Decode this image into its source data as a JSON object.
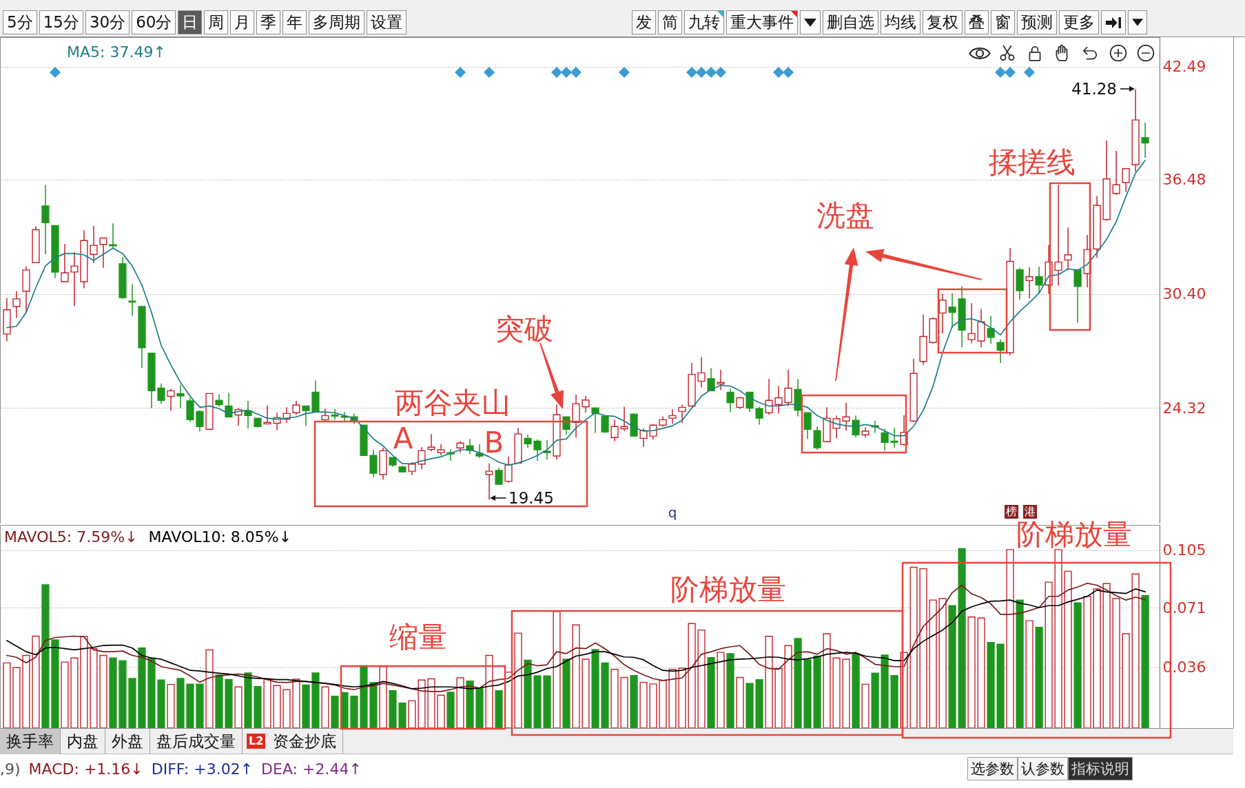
{
  "chart_data": [
    {
      "type": "other",
      "annotations": [
        "5分",
        "15分",
        "30分",
        "60分",
        "日",
        "周",
        "月",
        "季",
        "年",
        "多周期",
        "设置",
        "发",
        "简",
        "九转",
        "重大事件",
        "删自选",
        "均线",
        "复权",
        "叠",
        "窗",
        "预测",
        "更多"
      ]
    },
    {
      "type": "candlestick",
      "categories": [
        null,
        null,
        null,
        null,
        null,
        null,
        null,
        null,
        null,
        null,
        null,
        null,
        null,
        null,
        null,
        null,
        null,
        null,
        null,
        null,
        null,
        null,
        null,
        null,
        null,
        null,
        null,
        null,
        null,
        null,
        null,
        null,
        null,
        null,
        null,
        null,
        null,
        null,
        null,
        null,
        null,
        null,
        null,
        null,
        null,
        null,
        null,
        null,
        null,
        null,
        null,
        null,
        null,
        null,
        null,
        null,
        null,
        null,
        null,
        null,
        null,
        null,
        null,
        null,
        null,
        null,
        null,
        null,
        null,
        null,
        null,
        null,
        null,
        null,
        null,
        null,
        null,
        null,
        null,
        null,
        null,
        null,
        null,
        null,
        null,
        null,
        null,
        null,
        null,
        null,
        null,
        null,
        null,
        null,
        null,
        null,
        null,
        null,
        null,
        null,
        null,
        null,
        null,
        null,
        null,
        null,
        null,
        null,
        null,
        null,
        null,
        null,
        null,
        null,
        null,
        null,
        null,
        null,
        null
      ],
      "ohlc": [
        [
          28.26,
          30.16,
          27.87,
          29.55
        ],
        [
          29.72,
          30.54,
          29.11,
          30.13
        ],
        [
          30.54,
          31.86,
          29.47,
          31.67
        ],
        [
          32.06,
          34.0,
          32.03,
          33.81
        ],
        [
          35.07,
          36.19,
          32.51,
          34.18
        ],
        [
          34.03,
          34.03,
          31.23,
          31.55
        ],
        [
          31.04,
          33.05,
          31.01,
          31.52
        ],
        [
          31.56,
          32.62,
          29.74,
          31.88
        ],
        [
          31.04,
          33.78,
          30.69,
          33.23
        ],
        [
          32.5,
          34.0,
          32.03,
          32.98
        ],
        [
          33.02,
          33.4,
          31.78,
          33.37
        ],
        [
          33.01,
          34.15,
          32.83,
          32.95
        ],
        [
          32.0,
          32.37,
          30.13,
          30.2
        ],
        [
          30.01,
          30.91,
          29.23,
          29.96
        ],
        [
          29.72,
          29.77,
          26.45,
          27.53
        ],
        [
          27.24,
          27.24,
          24.32,
          25.24
        ],
        [
          25.38,
          25.63,
          24.55,
          24.73
        ],
        [
          24.94,
          25.34,
          24.17,
          25.24
        ],
        [
          25.09,
          25.53,
          24.32,
          24.97
        ],
        [
          24.7,
          24.87,
          23.59,
          23.7
        ],
        [
          24.14,
          24.21,
          23.07,
          23.34
        ],
        [
          23.19,
          25.09,
          23.15,
          25.09
        ],
        [
          24.73,
          25.06,
          24.4,
          24.51
        ],
        [
          24.43,
          25.12,
          23.82,
          23.85
        ],
        [
          23.95,
          24.32,
          23.38,
          24.24
        ],
        [
          24.17,
          24.7,
          23.24,
          23.92
        ],
        [
          23.78,
          23.78,
          23.29,
          23.34
        ],
        [
          23.48,
          24.46,
          23.48,
          23.56
        ],
        [
          23.51,
          24.07,
          23.15,
          23.81
        ],
        [
          23.73,
          24.36,
          23.53,
          24.04
        ],
        [
          24.07,
          24.7,
          23.97,
          24.48
        ],
        [
          24.43,
          24.43,
          23.38,
          24.19
        ],
        [
          25.16,
          25.78,
          24.11,
          24.11
        ],
        [
          23.7,
          24.29,
          23.63,
          23.92
        ],
        [
          23.95,
          24.26,
          23.7,
          23.89
        ],
        [
          23.88,
          24.11,
          23.59,
          23.83
        ],
        [
          23.85,
          24.02,
          23.48,
          23.63
        ],
        [
          23.41,
          23.41,
          21.77,
          21.8
        ],
        [
          21.8,
          22.1,
          20.64,
          20.85
        ],
        [
          20.78,
          22.21,
          20.52,
          22.05
        ],
        [
          21.69,
          21.69,
          21.19,
          21.29
        ],
        [
          21.19,
          21.25,
          20.9,
          20.93
        ],
        [
          20.96,
          21.44,
          20.75,
          21.34
        ],
        [
          21.34,
          22.24,
          21.07,
          22.05
        ],
        [
          22.12,
          22.93,
          22.02,
          22.24
        ],
        [
          21.95,
          22.39,
          21.8,
          22.1
        ],
        [
          21.95,
          22.12,
          21.51,
          21.88
        ],
        [
          22.2,
          22.56,
          21.95,
          22.46
        ],
        [
          22.31,
          22.68,
          21.88,
          22.07
        ],
        [
          21.91,
          22.39,
          21.66,
          21.77
        ],
        [
          20.78,
          21.39,
          19.45,
          20.96
        ],
        [
          21.0,
          21.15,
          20.23,
          20.27
        ],
        [
          20.42,
          21.73,
          20.34,
          21.29
        ],
        [
          21.39,
          23.27,
          21.36,
          22.94
        ],
        [
          22.71,
          22.9,
          22.21,
          22.42
        ],
        [
          22.56,
          22.65,
          21.51,
          22.1
        ],
        [
          22.02,
          22.61,
          21.58,
          21.95
        ],
        [
          21.77,
          24.51,
          21.58,
          23.97
        ],
        [
          23.85,
          23.88,
          22.9,
          23.19
        ],
        [
          23.56,
          25.05,
          22.75,
          24.55
        ],
        [
          24.39,
          24.97,
          24.07,
          24.75
        ],
        [
          24.33,
          24.33,
          23.0,
          24.03
        ],
        [
          23.88,
          23.88,
          23.0,
          23.05
        ],
        [
          22.75,
          23.7,
          22.56,
          23.34
        ],
        [
          23.22,
          24.39,
          23.09,
          23.34
        ],
        [
          24.0,
          24.0,
          22.8,
          22.83
        ],
        [
          22.71,
          23.24,
          22.27,
          23.12
        ],
        [
          22.83,
          23.48,
          22.65,
          23.41
        ],
        [
          23.41,
          23.88,
          23.34,
          23.7
        ],
        [
          23.78,
          24.26,
          23.48,
          23.92
        ],
        [
          24.14,
          24.51,
          23.53,
          24.36
        ],
        [
          24.43,
          26.74,
          24.36,
          26.11
        ],
        [
          25.75,
          27.03,
          25.43,
          26.19
        ],
        [
          25.89,
          26.45,
          25.24,
          25.24
        ],
        [
          25.6,
          26.36,
          25.28,
          25.68
        ],
        [
          25.16,
          25.34,
          24.11,
          24.61
        ],
        [
          24.36,
          24.9,
          24.26,
          24.87
        ],
        [
          25.16,
          25.16,
          24.11,
          24.32
        ],
        [
          24.29,
          24.39,
          23.44,
          23.78
        ],
        [
          24.07,
          25.87,
          23.97,
          24.73
        ],
        [
          24.51,
          25.49,
          24.02,
          24.87
        ],
        [
          24.61,
          26.36,
          24.43,
          25.38
        ],
        [
          25.31,
          25.87,
          23.88,
          24.21
        ],
        [
          24.07,
          24.07,
          22.68,
          23.19
        ],
        [
          23.12,
          23.34,
          22.1,
          22.21
        ],
        [
          22.53,
          24.36,
          22.5,
          23.78
        ],
        [
          23.24,
          23.92,
          22.71,
          23.75
        ],
        [
          23.63,
          24.61,
          23.12,
          23.85
        ],
        [
          23.67,
          23.92,
          22.75,
          22.9
        ],
        [
          22.9,
          23.29,
          22.75,
          23.09
        ],
        [
          23.38,
          23.66,
          23.0,
          23.32
        ],
        [
          23.0,
          23.22,
          22.06,
          22.49
        ],
        [
          22.56,
          23.27,
          22.22,
          22.5
        ],
        [
          22.38,
          23.94,
          22.33,
          23.03
        ],
        [
          23.63,
          26.95,
          23.58,
          26.17
        ],
        [
          26.8,
          29.3,
          26.61,
          28.13
        ],
        [
          27.81,
          29.15,
          27.74,
          29.07
        ],
        [
          29.38,
          30.4,
          28.28,
          30.06
        ],
        [
          29.69,
          30.43,
          28.6,
          29.41
        ],
        [
          30.13,
          30.79,
          27.55,
          28.47
        ],
        [
          27.97,
          29.9,
          27.77,
          28.28
        ],
        [
          27.89,
          29.59,
          27.55,
          28.91
        ],
        [
          28.55,
          29.22,
          27.74,
          28.08
        ],
        [
          27.81,
          27.97,
          26.72,
          27.39
        ],
        [
          27.27,
          32.83,
          27.14,
          32.12
        ],
        [
          31.68,
          31.78,
          30.09,
          30.56
        ],
        [
          31.1,
          31.81,
          30.16,
          31.31
        ],
        [
          31.31,
          31.84,
          30.4,
          30.87
        ],
        [
          30.87,
          32.99,
          30.4,
          32.09
        ],
        [
          31.65,
          36.2,
          30.84,
          32.09
        ],
        [
          32.2,
          33.93,
          31.65,
          32.47
        ],
        [
          31.68,
          31.68,
          28.86,
          30.79
        ],
        [
          31.47,
          33.53,
          30.74,
          32.75
        ],
        [
          32.78,
          35.6,
          32.31,
          35.1
        ],
        [
          34.35,
          38.55,
          34.29,
          36.51
        ],
        [
          35.73,
          38.0,
          35.65,
          36.2
        ],
        [
          36.32,
          37.06,
          35.81,
          37.06
        ],
        [
          37.26,
          41.28,
          36.9,
          39.65
        ],
        [
          38.7,
          39.52,
          37.64,
          38.42
        ]
      ],
      "colors": [
        "#c4232b",
        "#c4232b",
        "#c4232b",
        "#c4232b",
        "#1e961e",
        "#1e961e",
        "#c4232b",
        "#c4232b",
        "#c4232b",
        "#c4232b",
        "#c4232b",
        "#1e961e",
        "#1e961e",
        "#1e961e",
        "#1e961e",
        "#1e961e",
        "#1e961e",
        "#c4232b",
        "#1e961e",
        "#1e961e",
        "#1e961e",
        "#c4232b",
        "#1e961e",
        "#1e961e",
        "#c4232b",
        "#1e961e",
        "#1e961e",
        "#c4232b",
        "#c4232b",
        "#c4232b",
        "#c4232b",
        "#1e961e",
        "#1e961e",
        "#c4232b",
        "#1e961e",
        "#1e961e",
        "#1e961e",
        "#1e961e",
        "#1e961e",
        "#c4232b",
        "#1e961e",
        "#1e961e",
        "#c4232b",
        "#c4232b",
        "#c4232b",
        "#c4232b",
        "#1e961e",
        "#c4232b",
        "#1e961e",
        "#1e961e",
        "#c4232b",
        "#1e961e",
        "#c4232b",
        "#c4232b",
        "#1e961e",
        "#1e961e",
        "#1e961e",
        "#c4232b",
        "#1e961e",
        "#c4232b",
        "#c4232b",
        "#1e961e",
        "#1e961e",
        "#c4232b",
        "#c4232b",
        "#1e961e",
        "#c4232b",
        "#c4232b",
        "#c4232b",
        "#c4232b",
        "#c4232b",
        "#c4232b",
        "#c4232b",
        "#1e961e",
        "#c4232b",
        "#1e961e",
        "#c4232b",
        "#1e961e",
        "#1e961e",
        "#c4232b",
        "#c4232b",
        "#c4232b",
        "#1e961e",
        "#1e961e",
        "#1e961e",
        "#c4232b",
        "#c4232b",
        "#c4232b",
        "#1e961e",
        "#c4232b",
        "#1e961e",
        "#1e961e",
        "#1e961e",
        "#c4232b",
        "#c4232b",
        "#c4232b",
        "#c4232b",
        "#c4232b",
        "#1e961e",
        "#1e961e",
        "#c4232b",
        "#c4232b",
        "#1e961e",
        "#1e961e",
        "#c4232b",
        "#1e961e",
        "#c4232b",
        "#1e961e",
        "#c4232b",
        "#c4232b",
        "#c4232b",
        "#1e961e",
        "#c4232b",
        "#c4232b",
        "#c4232b",
        "#c4232b",
        "#c4232b",
        "#c4232b",
        "#1e961e"
      ],
      "series": [
        {
          "name": "MA5: 37.49↑",
          "type": "line",
          "color": "#1b7e89",
          "values": [
            28.6,
            28.67,
            29.4,
            30.72,
            31.88,
            32.32,
            32.54,
            32.54,
            32.47,
            32.18,
            32.5,
            32.83,
            32.54,
            31.88,
            30.86,
            29.4,
            27.65,
            26.62,
            25.68,
            24.95,
            24.36,
            24.43,
            24.29,
            24.02,
            24.14,
            24.21,
            24.0,
            23.78,
            23.73,
            23.78,
            23.85,
            24.02,
            24.11,
            24.11,
            24.07,
            23.92,
            23.78,
            23.26,
            22.68,
            22.31,
            21.8,
            21.36,
            21.36,
            21.51,
            21.63,
            21.73,
            21.92,
            22.1,
            22.1,
            21.95,
            21.73,
            21.44,
            21.29,
            21.39,
            21.58,
            21.8,
            22.1,
            22.61,
            22.68,
            23.26,
            23.7,
            24.07,
            23.92,
            23.88,
            23.63,
            23.29,
            23.09,
            23.12,
            23.24,
            23.38,
            23.67,
            24.32,
            24.95,
            25.31,
            25.53,
            25.49,
            25.24,
            24.87,
            24.61,
            24.43,
            24.43,
            24.51,
            24.51,
            24.36,
            23.92,
            23.67,
            23.48,
            23.38,
            23.34,
            23.44,
            23.35,
            23.11,
            22.85,
            22.85,
            23.35,
            24.21,
            25.46,
            27.27,
            28.68,
            29.02,
            29.07,
            28.91,
            28.6,
            28.21,
            28.91,
            29.46,
            29.93,
            30.43,
            31.34,
            31.42,
            31.73,
            31.65,
            31.97,
            32.59,
            33.3,
            34.24,
            35.57,
            36.82,
            37.49
          ]
        }
      ],
      "ylim": [
        18.18,
        44.05
      ],
      "yticks": [
        24.32,
        {
          "value": 30.4,
          "label": "30.40"
        },
        36.48,
        42.49
      ],
      "grid": "y",
      "legend": "top left",
      "annotations": [
        "两谷夹山",
        "A",
        "B",
        "突破",
        "洗盘",
        "揉搓线",
        "41.28",
        "19.45",
        "q",
        "榜",
        "港"
      ]
    },
    {
      "type": "bar",
      "categories": [
        null,
        null,
        null,
        null,
        null,
        null,
        null,
        null,
        null,
        null,
        null,
        null,
        null,
        null,
        null,
        null,
        null,
        null,
        null,
        null,
        null,
        null,
        null,
        null,
        null,
        null,
        null,
        null,
        null,
        null,
        null,
        null,
        null,
        null,
        null,
        null,
        null,
        null,
        null,
        null,
        null,
        null,
        null,
        null,
        null,
        null,
        null,
        null,
        null,
        null,
        null,
        null,
        null,
        null,
        null,
        null,
        null,
        null,
        null,
        null,
        null,
        null,
        null,
        null,
        null,
        null,
        null,
        null,
        null,
        null,
        null,
        null,
        null,
        null,
        null,
        null,
        null,
        null,
        null,
        null,
        null,
        null,
        null,
        null,
        null,
        null,
        null,
        null,
        null,
        null,
        null,
        null,
        null,
        null,
        null,
        null,
        null,
        null,
        null,
        null,
        null,
        null,
        null,
        null,
        null,
        null,
        null,
        null,
        null,
        null,
        null,
        null,
        null,
        null,
        null,
        null,
        null,
        null,
        null
      ],
      "series": [
        {
          "type": "bar",
          "colors": [
            "#c4232b",
            "#c4232b",
            "#c4232b",
            "#c4232b",
            "#1e961e",
            "#1e961e",
            "#c4232b",
            "#c4232b",
            "#c4232b",
            "#c4232b",
            "#c4232b",
            "#1e961e",
            "#1e961e",
            "#1e961e",
            "#1e961e",
            "#1e961e",
            "#1e961e",
            "#c4232b",
            "#1e961e",
            "#1e961e",
            "#1e961e",
            "#c4232b",
            "#1e961e",
            "#1e961e",
            "#c4232b",
            "#1e961e",
            "#1e961e",
            "#c4232b",
            "#c4232b",
            "#c4232b",
            "#c4232b",
            "#1e961e",
            "#1e961e",
            "#c4232b",
            "#1e961e",
            "#1e961e",
            "#1e961e",
            "#1e961e",
            "#1e961e",
            "#c4232b",
            "#1e961e",
            "#1e961e",
            "#c4232b",
            "#c4232b",
            "#c4232b",
            "#c4232b",
            "#1e961e",
            "#c4232b",
            "#1e961e",
            "#1e961e",
            "#c4232b",
            "#1e961e",
            "#c4232b",
            "#c4232b",
            "#1e961e",
            "#1e961e",
            "#1e961e",
            "#c4232b",
            "#1e961e",
            "#c4232b",
            "#c4232b",
            "#1e961e",
            "#1e961e",
            "#c4232b",
            "#c4232b",
            "#1e961e",
            "#c4232b",
            "#c4232b",
            "#c4232b",
            "#c4232b",
            "#c4232b",
            "#c4232b",
            "#c4232b",
            "#1e961e",
            "#c4232b",
            "#1e961e",
            "#c4232b",
            "#1e961e",
            "#1e961e",
            "#c4232b",
            "#c4232b",
            "#c4232b",
            "#1e961e",
            "#1e961e",
            "#1e961e",
            "#c4232b",
            "#c4232b",
            "#c4232b",
            "#1e961e",
            "#c4232b",
            "#1e961e",
            "#1e961e",
            "#1e961e",
            "#c4232b",
            "#c4232b",
            "#c4232b",
            "#c4232b",
            "#c4232b",
            "#1e961e",
            "#1e961e",
            "#c4232b",
            "#c4232b",
            "#1e961e",
            "#1e961e",
            "#c4232b",
            "#1e961e",
            "#c4232b",
            "#1e961e",
            "#c4232b",
            "#c4232b",
            "#c4232b",
            "#1e961e",
            "#c4232b",
            "#c4232b",
            "#c4232b",
            "#c4232b",
            "#c4232b",
            "#c4232b",
            "#1e961e"
          ],
          "values": [
            0.0385,
            0.0357,
            0.0429,
            0.0543,
            0.0846,
            0.0521,
            0.039,
            0.0414,
            0.0541,
            0.0469,
            0.0429,
            0.0414,
            0.0398,
            0.0293,
            0.0473,
            0.0414,
            0.0284,
            0.0258,
            0.0293,
            0.026,
            0.026,
            0.0462,
            0.0313,
            0.0287,
            0.0243,
            0.0326,
            0.0245,
            0.0289,
            0.0251,
            0.0227,
            0.0289,
            0.0254,
            0.0326,
            0.0243,
            0.0188,
            0.021,
            0.0188,
            0.0368,
            0.0269,
            0.0363,
            0.0221,
            0.0148,
            0.0161,
            0.0284,
            0.0291,
            0.0194,
            0.0212,
            0.0297,
            0.0278,
            0.0232,
            0.0429,
            0.0221,
            0.033,
            0.0561,
            0.0401,
            0.0308,
            0.0308,
            0.0688,
            0.0407,
            0.0609,
            0.0407,
            0.0464,
            0.0385,
            0.0347,
            0.0299,
            0.031,
            0.027,
            0.0261,
            0.0281,
            0.0347,
            0.0354,
            0.0617,
            0.0579,
            0.0416,
            0.0447,
            0.044,
            0.0299,
            0.0264,
            0.0286,
            0.0542,
            0.0352,
            0.0487,
            0.0529,
            0.0403,
            0.0425,
            0.0557,
            0.0414,
            0.0407,
            0.044,
            0.0259,
            0.0325,
            0.0431,
            0.031,
            0.0447,
            0.095,
            0.0941,
            0.0756,
            0.0765,
            0.0723,
            0.106,
            0.0656,
            0.065,
            0.0506,
            0.0495,
            0.1054,
            0.0756,
            0.0634,
            0.0595,
            0.0862,
            0.1054,
            0.0926,
            0.074,
            0.0778,
            0.0822,
            0.0853,
            0.0765,
            0.0557,
            0.091,
            0.0782
          ]
        },
        {
          "name": "MAVOL5: 7.59%↓",
          "type": "line",
          "color": "#7c1c1c",
          "values": [
            0.0429,
            0.0418,
            0.0385,
            0.0418,
            0.0517,
            0.0535,
            0.0539,
            0.0543,
            0.0539,
            0.0462,
            0.0451,
            0.0451,
            0.0455,
            0.0429,
            0.0418,
            0.0396,
            0.0363,
            0.0352,
            0.0341,
            0.0308,
            0.0271,
            0.0297,
            0.0308,
            0.0315,
            0.0319,
            0.0313,
            0.0302,
            0.0286,
            0.0271,
            0.0269,
            0.0275,
            0.0275,
            0.0271,
            0.0264,
            0.0254,
            0.0236,
            0.0227,
            0.0243,
            0.0249,
            0.0264,
            0.0254,
            0.0243,
            0.0232,
            0.0219,
            0.0216,
            0.0216,
            0.0227,
            0.0243,
            0.0249,
            0.0236,
            0.0275,
            0.0286,
            0.0293,
            0.0341,
            0.0381,
            0.0368,
            0.0374,
            0.0451,
            0.044,
            0.0473,
            0.0469,
            0.0502,
            0.0469,
            0.0425,
            0.0374,
            0.0341,
            0.0314,
            0.0292,
            0.0281,
            0.0288,
            0.0297,
            0.0359,
            0.0436,
            0.0451,
            0.0469,
            0.048,
            0.0487,
            0.0436,
            0.0376,
            0.0352,
            0.0347,
            0.0403,
            0.0447,
            0.0451,
            0.0436,
            0.0469,
            0.0458,
            0.0436,
            0.0447,
            0.0414,
            0.0376,
            0.037,
            0.0363,
            0.0363,
            0.0491,
            0.0601,
            0.0656,
            0.0712,
            0.08,
            0.0844,
            0.0793,
            0.0771,
            0.0734,
            0.0672,
            0.0672,
            0.0678,
            0.0694,
            0.0712,
            0.0778,
            0.0778,
            0.0815,
            0.0833,
            0.0855,
            0.0844,
            0.0815,
            0.0782,
            0.0756,
            0.0773,
            0.0759
          ]
        },
        {
          "name": "MAVOL10: 8.05%↓",
          "type": "line",
          "color": "#000000",
          "values": [
            0.0517,
            0.0484,
            0.0451,
            0.0433,
            0.0473,
            0.0477,
            0.0469,
            0.0462,
            0.0469,
            0.0477,
            0.0488,
            0.049,
            0.049,
            0.0473,
            0.0429,
            0.0414,
            0.0407,
            0.0385,
            0.0363,
            0.0341,
            0.0337,
            0.033,
            0.0324,
            0.0319,
            0.0308,
            0.0297,
            0.0293,
            0.0291,
            0.0286,
            0.0286,
            0.028,
            0.0275,
            0.0269,
            0.0264,
            0.0258,
            0.0249,
            0.0243,
            0.0249,
            0.0258,
            0.0275,
            0.0264,
            0.0249,
            0.0232,
            0.0236,
            0.0243,
            0.0243,
            0.0243,
            0.0238,
            0.0232,
            0.0236,
            0.0247,
            0.0254,
            0.0275,
            0.0308,
            0.0315,
            0.033,
            0.0352,
            0.0363,
            0.0396,
            0.0425,
            0.0436,
            0.0451,
            0.0451,
            0.0436,
            0.042,
            0.0418,
            0.0403,
            0.0369,
            0.0341,
            0.0336,
            0.0341,
            0.0359,
            0.0369,
            0.0381,
            0.0392,
            0.0403,
            0.0407,
            0.0409,
            0.0414,
            0.042,
            0.0418,
            0.0407,
            0.0403,
            0.0409,
            0.042,
            0.0436,
            0.0442,
            0.0447,
            0.0442,
            0.0425,
            0.0418,
            0.0414,
            0.0398,
            0.0398,
            0.0469,
            0.0513,
            0.0546,
            0.0579,
            0.0623,
            0.069,
            0.0716,
            0.0734,
            0.0749,
            0.0751,
            0.0756,
            0.0738,
            0.0727,
            0.0712,
            0.0723,
            0.0723,
            0.0745,
            0.076,
            0.0778,
            0.0815,
            0.0804,
            0.08,
            0.0795,
            0.0822,
            0.0805
          ]
        }
      ],
      "ylim": [
        0,
        0.12
      ],
      "yticks": [
        0.036,
        0.071,
        0.105
      ],
      "grid": "y",
      "legend": "top left",
      "annotations": [
        "缩量",
        "阶梯放量",
        "阶梯放量"
      ]
    },
    {
      "type": "other",
      "annotations": [
        "换手率",
        "内盘",
        "外盘",
        "盘后成交量",
        "L2",
        "资金抄底",
        ",9)",
        "MACD: +1.16↓",
        "DIFF: +3.02↑",
        "DEA: +2.44↑",
        "选参数",
        "认参数",
        "指标说明"
      ]
    }
  ]
}
